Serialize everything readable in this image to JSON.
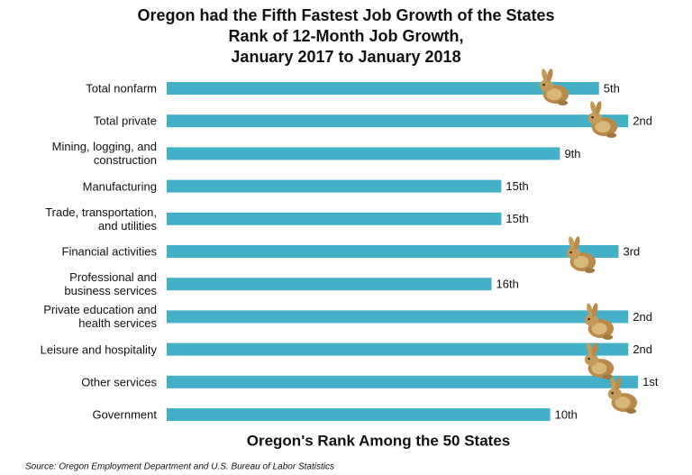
{
  "chart_data": {
    "type": "bar",
    "orientation": "horizontal",
    "title": [
      "Oregon had the Fifth Fastest Job Growth of the States",
      "Rank of 12-Month Job Growth,",
      "January 2017 to January 2018"
    ],
    "x_label": "Oregon's Rank Among the 50 States",
    "source": "Source: Oregon Employment Department and U.S. Bureau of Labor Statistics",
    "categories": [
      "Total nonfarm",
      "Total private",
      "Mining, logging, and\nconstruction",
      "Manufacturing",
      "Trade, transportation,\nand utilities",
      "Financial activities",
      "Professional and\nbusiness services",
      "Private education and\nhealth services",
      "Leisure and hospitality",
      "Other services",
      "Government"
    ],
    "values": [
      5,
      2,
      9,
      15,
      15,
      3,
      16,
      2,
      2,
      1,
      10
    ],
    "value_labels": [
      "5th",
      "2nd",
      "9th",
      "15th",
      "15th",
      "3rd",
      "16th",
      "2nd",
      "2nd",
      "1st",
      "10th"
    ],
    "color": "#44b0c8",
    "xlim": [
      50,
      0
    ]
  }
}
